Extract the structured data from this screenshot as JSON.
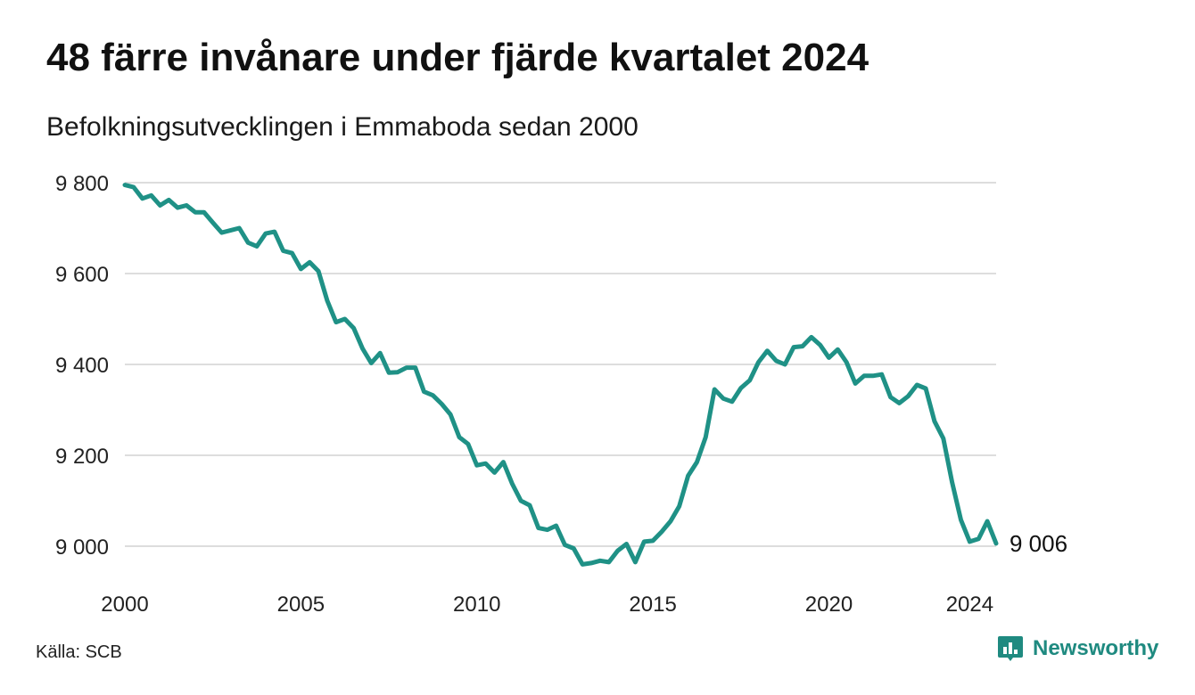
{
  "title": "48 färre invånare under fjärde kvartalet 2024",
  "subtitle": "Befolkningsutvecklingen i Emmaboda sedan 2000",
  "source": "Källa: SCB",
  "brand": {
    "name": "Newsworthy",
    "icon": "newsworthy-logo-icon"
  },
  "colors": {
    "line": "#1f9186",
    "grid": "#dddddd",
    "brand": "#1f8a80"
  },
  "chart_data": {
    "type": "line",
    "title": "48 färre invånare under fjärde kvartalet 2024",
    "subtitle": "Befolkningsutvecklingen i Emmaboda sedan 2000",
    "xlabel": "",
    "ylabel": "",
    "grid": true,
    "legend": "none",
    "ylim": [
      8920,
      9800
    ],
    "xlim": [
      2000,
      2024.75
    ],
    "yticks": [
      9000,
      9200,
      9400,
      9600,
      9800
    ],
    "ytick_labels": [
      "9 000",
      "9 200",
      "9 400",
      "9 600",
      "9 800"
    ],
    "xticks": [
      2000,
      2005,
      2010,
      2015,
      2020,
      2024
    ],
    "xtick_labels": [
      "2000",
      "2005",
      "2010",
      "2015",
      "2020",
      "2024"
    ],
    "end_label": "9 006",
    "series": [
      {
        "x": [
          2000.0,
          2000.25,
          2000.5,
          2000.75,
          2001.0,
          2001.25,
          2001.5,
          2001.75,
          2002.0,
          2002.25,
          2002.5,
          2002.75,
          2003.0,
          2003.25,
          2003.5,
          2003.75,
          2004.0,
          2004.25,
          2004.5,
          2004.75,
          2005.0,
          2005.25,
          2005.5,
          2005.75,
          2006.0,
          2006.25,
          2006.5,
          2006.75,
          2007.0,
          2007.25,
          2007.5,
          2007.75,
          2008.0,
          2008.25,
          2008.5,
          2008.75,
          2009.0,
          2009.25,
          2009.5,
          2009.75,
          2010.0,
          2010.25,
          2010.5,
          2010.75,
          2011.0,
          2011.25,
          2011.5,
          2011.75,
          2012.0,
          2012.25,
          2012.5,
          2012.75,
          2013.0,
          2013.25,
          2013.5,
          2013.75,
          2014.0,
          2014.25,
          2014.5,
          2014.75,
          2015.0,
          2015.25,
          2015.5,
          2015.75,
          2016.0,
          2016.25,
          2016.5,
          2016.75,
          2017.0,
          2017.25,
          2017.5,
          2017.75,
          2018.0,
          2018.25,
          2018.5,
          2018.75,
          2019.0,
          2019.25,
          2019.5,
          2019.75,
          2020.0,
          2020.25,
          2020.5,
          2020.75,
          2021.0,
          2021.25,
          2021.5,
          2021.75,
          2022.0,
          2022.25,
          2022.5,
          2022.75,
          2023.0,
          2023.25,
          2023.5,
          2023.75,
          2024.0,
          2024.25,
          2024.5,
          2024.75
        ],
        "y": [
          9795,
          9790,
          9765,
          9772,
          9750,
          9762,
          9745,
          9750,
          9735,
          9735,
          9712,
          9690,
          9695,
          9700,
          9668,
          9660,
          9688,
          9692,
          9650,
          9645,
          9610,
          9625,
          9605,
          9540,
          9493,
          9500,
          9480,
          9435,
          9403,
          9425,
          9382,
          9383,
          9393,
          9393,
          9340,
          9332,
          9313,
          9290,
          9240,
          9225,
          9178,
          9182,
          9162,
          9185,
          9138,
          9100,
          9090,
          9040,
          9036,
          9045,
          9003,
          8995,
          8960,
          8963,
          8968,
          8965,
          8990,
          9005,
          8965,
          9010,
          9012,
          9032,
          9055,
          9088,
          9155,
          9185,
          9240,
          9345,
          9325,
          9318,
          9348,
          9365,
          9405,
          9430,
          9408,
          9400,
          9438,
          9440,
          9460,
          9443,
          9415,
          9433,
          9405,
          9358,
          9375,
          9375,
          9378,
          9328,
          9315,
          9330,
          9355,
          9347,
          9275,
          9237,
          9140,
          9058,
          9010,
          9016,
          9055,
          9006
        ]
      }
    ]
  }
}
